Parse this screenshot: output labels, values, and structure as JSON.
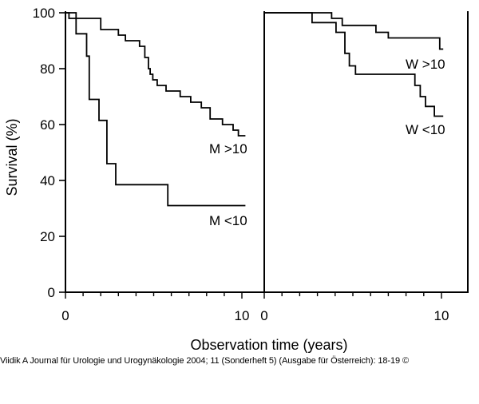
{
  "chart_data": {
    "type": "line",
    "subtype": "kaplan-meier step curves, two panels",
    "ylabel": "Survival (%)",
    "xlabel": "Observation time (years)",
    "ylim": [
      0,
      100
    ],
    "yticks": [
      0,
      20,
      40,
      60,
      80,
      100
    ],
    "grid": false,
    "panels": [
      {
        "xlim": [
          0,
          11.2
        ],
        "xticks": [
          0,
          10
        ],
        "series": [
          {
            "name": "M >10",
            "steps": [
              [
                0,
                100
              ],
              [
                0.2,
                98
              ],
              [
                2,
                94
              ],
              [
                3,
                92
              ],
              [
                3.4,
                90
              ],
              [
                4.2,
                88
              ],
              [
                4.5,
                84
              ],
              [
                4.7,
                80
              ],
              [
                4.8,
                78
              ],
              [
                4.95,
                76
              ],
              [
                5.2,
                74
              ],
              [
                5.7,
                72
              ],
              [
                6.5,
                70
              ],
              [
                7.1,
                68
              ],
              [
                7.7,
                66
              ],
              [
                8.2,
                62
              ],
              [
                8.9,
                60
              ],
              [
                9.5,
                58
              ],
              [
                9.8,
                56
              ],
              [
                10.2,
                56
              ]
            ]
          },
          {
            "name": "M <10",
            "steps": [
              [
                0,
                100
              ],
              [
                0.6,
                92.5
              ],
              [
                1.2,
                84.5
              ],
              [
                1.35,
                69
              ],
              [
                1.9,
                61.5
              ],
              [
                2.35,
                46
              ],
              [
                2.85,
                38.5
              ],
              [
                5.8,
                31
              ],
              [
                10.2,
                31
              ]
            ]
          }
        ]
      },
      {
        "xlim": [
          0,
          11.2
        ],
        "xticks": [
          0,
          10
        ],
        "series": [
          {
            "name": "W >10",
            "steps": [
              [
                0,
                100
              ],
              [
                3,
                100
              ],
              [
                3.8,
                98
              ],
              [
                4.4,
                95.5
              ],
              [
                6.3,
                93
              ],
              [
                7,
                91
              ],
              [
                9.9,
                87
              ],
              [
                10.1,
                87
              ]
            ]
          },
          {
            "name": "W <10",
            "steps": [
              [
                0,
                100
              ],
              [
                2.7,
                100
              ],
              [
                2.7,
                96.5
              ],
              [
                4.05,
                93
              ],
              [
                4.55,
                85.5
              ],
              [
                4.8,
                81
              ],
              [
                5.15,
                78
              ],
              [
                8.5,
                74
              ],
              [
                8.8,
                70
              ],
              [
                9.1,
                66.5
              ],
              [
                9.6,
                63
              ],
              [
                10.1,
                63
              ]
            ]
          }
        ]
      }
    ]
  },
  "caption": "Viidik A Journal für Urologie und Urogynäkologie 2004; 11 (Sonderheft 5) (Ausgabe für Österreich): 18-19 ©"
}
